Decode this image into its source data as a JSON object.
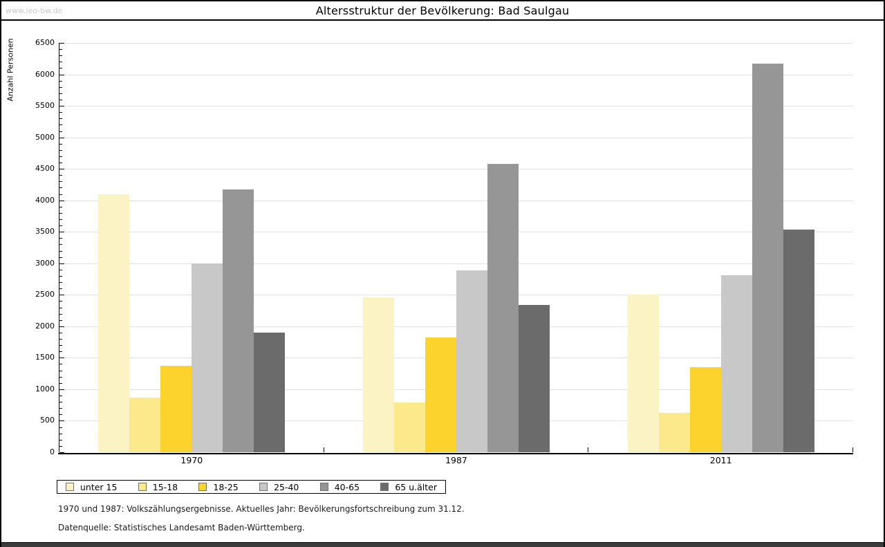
{
  "watermark": "www.leo-bw.de",
  "title": "Altersstruktur der Bevölkerung: Bad Saulgau",
  "chart_data": {
    "type": "bar",
    "title": "Altersstruktur der Bevölkerung: Bad Saulgau",
    "xlabel": "",
    "ylabel": "Anzahl Personen",
    "categories": [
      "1970",
      "1987",
      "2011"
    ],
    "series": [
      {
        "name": "unter 15",
        "color": "#FCF3C4",
        "values": [
          4100,
          2460,
          2500
        ]
      },
      {
        "name": "15-18",
        "color": "#FCE98B",
        "values": [
          870,
          790,
          625
        ]
      },
      {
        "name": "18-25",
        "color": "#FCD32D",
        "values": [
          1375,
          1825,
          1350
        ]
      },
      {
        "name": "25-40",
        "color": "#C8C8C8",
        "values": [
          3000,
          2890,
          2815
        ]
      },
      {
        "name": "40-65",
        "color": "#969696",
        "values": [
          4170,
          4580,
          6170
        ]
      },
      {
        "name": "65 u.älter",
        "color": "#6B6B6B",
        "values": [
          1900,
          2340,
          3540
        ]
      }
    ],
    "ylim": [
      0,
      6500
    ],
    "ytick_step": 500,
    "y_minor_step": 100,
    "grid": true,
    "legend_position": "bottom-left"
  },
  "footnotes": [
    "1970 und 1987: Volkszählungsergebnisse. Aktuelles Jahr: Bevölkerungsfortschreibung zum 31.12.",
    "Datenquelle: Statistisches Landesamt Baden-Württemberg."
  ]
}
